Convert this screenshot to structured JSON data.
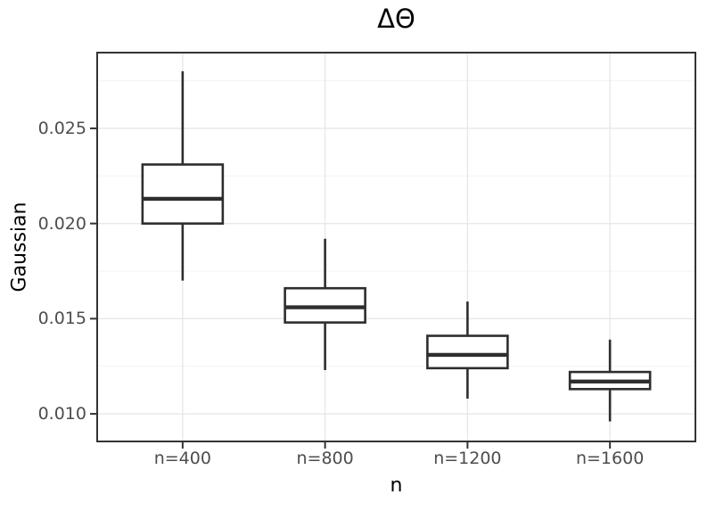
{
  "chart_data": {
    "type": "boxplot",
    "title": "ΔΘ",
    "xlabel": "n",
    "ylabel": "Gaussian",
    "categories": [
      "n=400",
      "n=800",
      "n=1200",
      "n=1600"
    ],
    "series": [
      {
        "category": "n=400",
        "whisker_low": 0.017,
        "q1": 0.02,
        "median": 0.0213,
        "q3": 0.0231,
        "whisker_high": 0.028
      },
      {
        "category": "n=800",
        "whisker_low": 0.0123,
        "q1": 0.0148,
        "median": 0.0156,
        "q3": 0.0166,
        "whisker_high": 0.0192
      },
      {
        "category": "n=1200",
        "whisker_low": 0.0108,
        "q1": 0.0124,
        "median": 0.0131,
        "q3": 0.0141,
        "whisker_high": 0.0159
      },
      {
        "category": "n=1600",
        "whisker_low": 0.0096,
        "q1": 0.0113,
        "median": 0.0117,
        "q3": 0.0122,
        "whisker_high": 0.0139
      }
    ],
    "ylim": [
      0.00855,
      0.02898
    ],
    "y_ticks": [
      0.01,
      0.015,
      0.02,
      0.025
    ],
    "y_tick_labels": [
      "0.010",
      "0.015",
      "0.020",
      "0.025"
    ],
    "y_minor_ticks": [
      0.0125,
      0.0175,
      0.0225,
      0.0275
    ],
    "grid": true,
    "legend": false
  },
  "colors": {
    "background": "#ffffff",
    "panel_background": "#ffffff",
    "panel_border": "#333333",
    "box_stroke": "#2e2e2e",
    "box_fill": "#ffffff",
    "grid_major": "#e8e8e8",
    "grid_minor": "#f3f3f3",
    "tick_mark": "#333333",
    "tick_label": "#4d4d4d",
    "title_text": "#000000"
  }
}
